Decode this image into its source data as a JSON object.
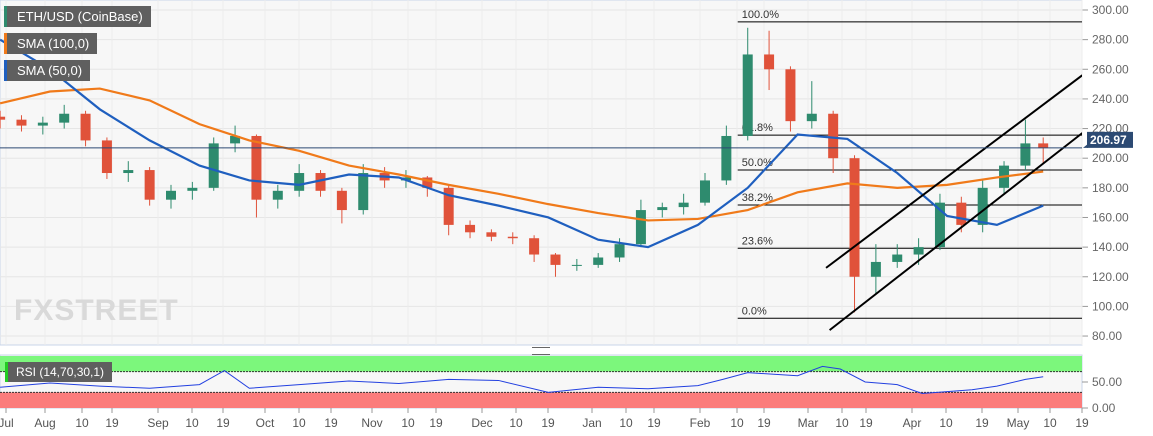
{
  "chart_data": {
    "type": "candlestick",
    "title": "ETH/USD (CoinBase)",
    "ylim": [
      75,
      310
    ],
    "y_ticks": [
      "300.00",
      "280.00",
      "260.00",
      "240.00",
      "220.00",
      "200.00",
      "180.00",
      "160.00",
      "140.00",
      "120.00",
      "100.00",
      "80.00"
    ],
    "x_ticks": [
      "Jul",
      "Aug",
      "10",
      "19",
      "Sep",
      "10",
      "19",
      "Oct",
      "10",
      "19",
      "Nov",
      "10",
      "19",
      "Dec",
      "10",
      "19",
      "Jan",
      "10",
      "19",
      "Feb",
      "10",
      "19",
      "Mar",
      "10",
      "19",
      "Apr",
      "10",
      "19",
      "May",
      "10",
      "19"
    ],
    "last_price": "206.97",
    "colors": {
      "up": "#2e8b6e",
      "down": "#e0523a",
      "sma100": "#f07a1a",
      "sma50": "#1f5fbf",
      "last": "#2c4a73"
    },
    "candles": [
      [
        "2019-07-18",
        228,
        232,
        220,
        226
      ],
      [
        "2019-07-24",
        226,
        229,
        218,
        222
      ],
      [
        "2019-07-30",
        222,
        228,
        216,
        224
      ],
      [
        "2019-08-05",
        224,
        236,
        220,
        230
      ],
      [
        "2019-08-11",
        230,
        232,
        208,
        212
      ],
      [
        "2019-08-17",
        212,
        214,
        186,
        190
      ],
      [
        "2019-08-23",
        190,
        198,
        184,
        192
      ],
      [
        "2019-08-29",
        192,
        194,
        168,
        172
      ],
      [
        "2019-09-04",
        172,
        182,
        166,
        178
      ],
      [
        "2019-09-10",
        178,
        184,
        172,
        180
      ],
      [
        "2019-09-16",
        180,
        214,
        178,
        210
      ],
      [
        "2019-09-22",
        210,
        222,
        204,
        215
      ],
      [
        "2019-09-28",
        215,
        216,
        160,
        172
      ],
      [
        "2019-10-04",
        172,
        182,
        166,
        178
      ],
      [
        "2019-10-10",
        178,
        196,
        174,
        190
      ],
      [
        "2019-10-16",
        190,
        192,
        174,
        178
      ],
      [
        "2019-10-22",
        178,
        180,
        156,
        165
      ],
      [
        "2019-10-28",
        165,
        196,
        162,
        190
      ],
      [
        "2019-11-03",
        190,
        194,
        180,
        185
      ],
      [
        "2019-11-09",
        185,
        192,
        180,
        187
      ],
      [
        "2019-11-15",
        187,
        188,
        174,
        180
      ],
      [
        "2019-11-21",
        180,
        182,
        148,
        155
      ],
      [
        "2019-11-27",
        155,
        158,
        146,
        150
      ],
      [
        "2019-12-03",
        150,
        152,
        144,
        147
      ],
      [
        "2019-12-09",
        147,
        150,
        142,
        146
      ],
      [
        "2019-12-15",
        146,
        148,
        130,
        135
      ],
      [
        "2019-12-21",
        135,
        136,
        120,
        128
      ],
      [
        "2019-12-27",
        128,
        132,
        124,
        128
      ],
      [
        "2020-01-02",
        128,
        136,
        126,
        133
      ],
      [
        "2020-01-08",
        133,
        146,
        130,
        142
      ],
      [
        "2020-01-14",
        142,
        172,
        140,
        165
      ],
      [
        "2020-01-20",
        165,
        170,
        160,
        167
      ],
      [
        "2020-01-26",
        167,
        176,
        162,
        170
      ],
      [
        "2020-02-01",
        170,
        190,
        168,
        185
      ],
      [
        "2020-02-07",
        185,
        222,
        182,
        215
      ],
      [
        "2020-02-13",
        215,
        288,
        212,
        270
      ],
      [
        "2020-02-19",
        270,
        286,
        246,
        260
      ],
      [
        "2020-02-25",
        260,
        262,
        218,
        225
      ],
      [
        "2020-03-02",
        225,
        252,
        220,
        230
      ],
      [
        "2020-03-08",
        230,
        232,
        190,
        200
      ],
      [
        "2020-03-14",
        200,
        202,
        96,
        120
      ],
      [
        "2020-03-20",
        120,
        142,
        108,
        130
      ],
      [
        "2020-03-26",
        130,
        142,
        126,
        135
      ],
      [
        "2020-04-01",
        135,
        146,
        128,
        140
      ],
      [
        "2020-04-07",
        140,
        176,
        138,
        170
      ],
      [
        "2020-04-13",
        170,
        174,
        150,
        155
      ],
      [
        "2020-04-19",
        155,
        186,
        150,
        180
      ],
      [
        "2020-04-25",
        180,
        198,
        176,
        195
      ],
      [
        "2020-05-01",
        195,
        226,
        192,
        210
      ],
      [
        "2020-05-06",
        210,
        214,
        196,
        206.97
      ]
    ],
    "series": [
      {
        "name": "SMA (100,0)",
        "points": [
          [
            "2019-07-18",
            237
          ],
          [
            "2019-08-01",
            245
          ],
          [
            "2019-08-15",
            247
          ],
          [
            "2019-08-29",
            239
          ],
          [
            "2019-09-12",
            223
          ],
          [
            "2019-09-26",
            212
          ],
          [
            "2019-10-10",
            205
          ],
          [
            "2019-10-24",
            195
          ],
          [
            "2019-11-07",
            189
          ],
          [
            "2019-11-21",
            182
          ],
          [
            "2019-12-05",
            176
          ],
          [
            "2019-12-19",
            169
          ],
          [
            "2020-01-02",
            163
          ],
          [
            "2020-01-16",
            158
          ],
          [
            "2020-01-30",
            159
          ],
          [
            "2020-02-13",
            165
          ],
          [
            "2020-02-27",
            177
          ],
          [
            "2020-03-12",
            183
          ],
          [
            "2020-03-26",
            180
          ],
          [
            "2020-04-09",
            182
          ],
          [
            "2020-04-23",
            187
          ],
          [
            "2020-05-06",
            191
          ]
        ]
      },
      {
        "name": "SMA (50,0)",
        "points": [
          [
            "2019-07-18",
            280
          ],
          [
            "2019-08-01",
            260
          ],
          [
            "2019-08-15",
            233
          ],
          [
            "2019-08-29",
            212
          ],
          [
            "2019-09-12",
            195
          ],
          [
            "2019-09-26",
            185
          ],
          [
            "2019-10-10",
            182
          ],
          [
            "2019-10-24",
            189
          ],
          [
            "2019-11-07",
            187
          ],
          [
            "2019-11-21",
            175
          ],
          [
            "2019-12-05",
            168
          ],
          [
            "2019-12-19",
            160
          ],
          [
            "2020-01-02",
            145
          ],
          [
            "2020-01-16",
            140
          ],
          [
            "2020-01-30",
            155
          ],
          [
            "2020-02-13",
            180
          ],
          [
            "2020-02-27",
            216
          ],
          [
            "2020-03-12",
            213
          ],
          [
            "2020-03-26",
            190
          ],
          [
            "2020-04-09",
            161
          ],
          [
            "2020-04-23",
            155
          ],
          [
            "2020-05-06",
            168
          ]
        ]
      }
    ],
    "fibonacci": {
      "low": 92,
      "high": 292,
      "start": "2020-02-13",
      "levels": [
        {
          "label": "100.0%",
          "value": 292
        },
        {
          "label": "61.8%",
          "value": 215.6
        },
        {
          "label": "50.0%",
          "value": 192
        },
        {
          "label": "38.2%",
          "value": 168.4
        },
        {
          "label": "23.6%",
          "value": 139.2
        },
        {
          "label": "0.0%",
          "value": 92
        }
      ]
    },
    "trendlines": [
      [
        [
          "2020-03-07",
          84
        ],
        [
          "2020-05-17",
          217
        ]
      ],
      [
        [
          "2020-03-06",
          126
        ],
        [
          "2020-05-17",
          256
        ]
      ]
    ],
    "rsi": {
      "label": "RSI (14,70,30,1)",
      "overbought": 70,
      "oversold": 30,
      "ticks": [
        "50.00",
        "0.00"
      ],
      "points": [
        [
          "2019-07-18",
          40
        ],
        [
          "2019-08-01",
          48
        ],
        [
          "2019-08-15",
          42
        ],
        [
          "2019-08-29",
          38
        ],
        [
          "2019-09-12",
          45
        ],
        [
          "2019-09-19",
          72
        ],
        [
          "2019-09-26",
          38
        ],
        [
          "2019-10-10",
          45
        ],
        [
          "2019-10-24",
          52
        ],
        [
          "2019-11-07",
          47
        ],
        [
          "2019-11-21",
          55
        ],
        [
          "2019-12-05",
          53
        ],
        [
          "2019-12-19",
          30
        ],
        [
          "2020-01-02",
          40
        ],
        [
          "2020-01-16",
          37
        ],
        [
          "2020-01-30",
          43
        ],
        [
          "2020-02-06",
          55
        ],
        [
          "2020-02-13",
          68
        ],
        [
          "2020-02-27",
          62
        ],
        [
          "2020-03-05",
          80
        ],
        [
          "2020-03-10",
          75
        ],
        [
          "2020-03-17",
          50
        ],
        [
          "2020-03-26",
          45
        ],
        [
          "2020-04-02",
          28
        ],
        [
          "2020-04-16",
          35
        ],
        [
          "2020-04-23",
          42
        ],
        [
          "2020-05-01",
          55
        ],
        [
          "2020-05-06",
          60
        ]
      ]
    }
  },
  "legend": {
    "main": "ETH/USD (CoinBase)",
    "sma100": "SMA (100,0)",
    "sma50": "SMA (50,0)"
  },
  "watermark": "FXSTREET"
}
